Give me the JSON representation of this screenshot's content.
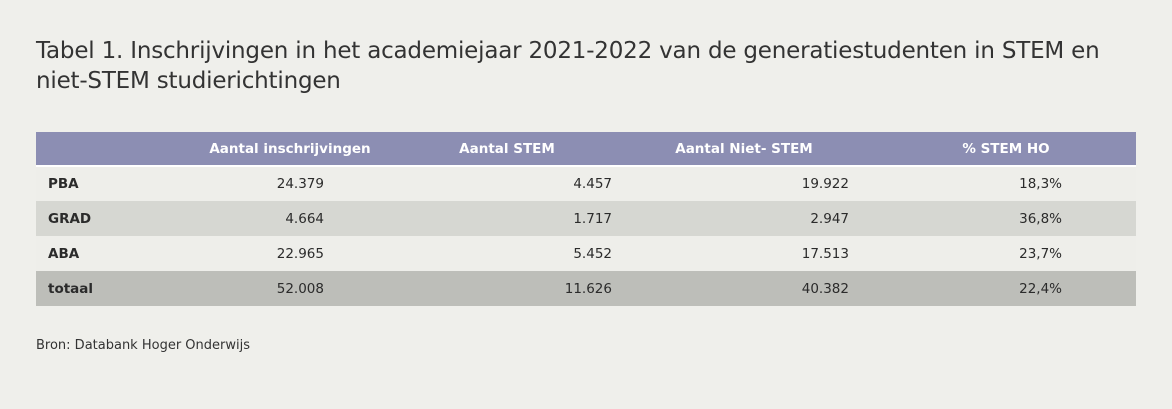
{
  "title": "Tabel 1. Inschrijvingen in het academiejaar 2021-2022 van de generatiestudenten in STEM en niet-STEM studierichtingen",
  "table": {
    "headers": [
      "",
      "Aantal inschrijvingen",
      "Aantal STEM",
      "Aantal Niet- STEM",
      "% STEM HO"
    ],
    "rows": [
      {
        "label": "PBA",
        "values": [
          "24.379",
          "4.457",
          "19.922",
          "18,3%"
        ]
      },
      {
        "label": "GRAD",
        "values": [
          "4.664",
          "1.717",
          "2.947",
          "36,8%"
        ]
      },
      {
        "label": "ABA",
        "values": [
          "22.965",
          "5.452",
          "17.513",
          "23,7%"
        ]
      },
      {
        "label": "totaal",
        "values": [
          "52.008",
          "11.626",
          "40.382",
          "22,4%"
        ]
      }
    ]
  },
  "source": "Bron: Databank Hoger Onderwijs",
  "colors": {
    "background": "#efefeb",
    "header": "#8c8eb3",
    "row_light": "#eeeeea",
    "row_mid": "#d6d7d2",
    "row_total": "#bdbeb9"
  }
}
